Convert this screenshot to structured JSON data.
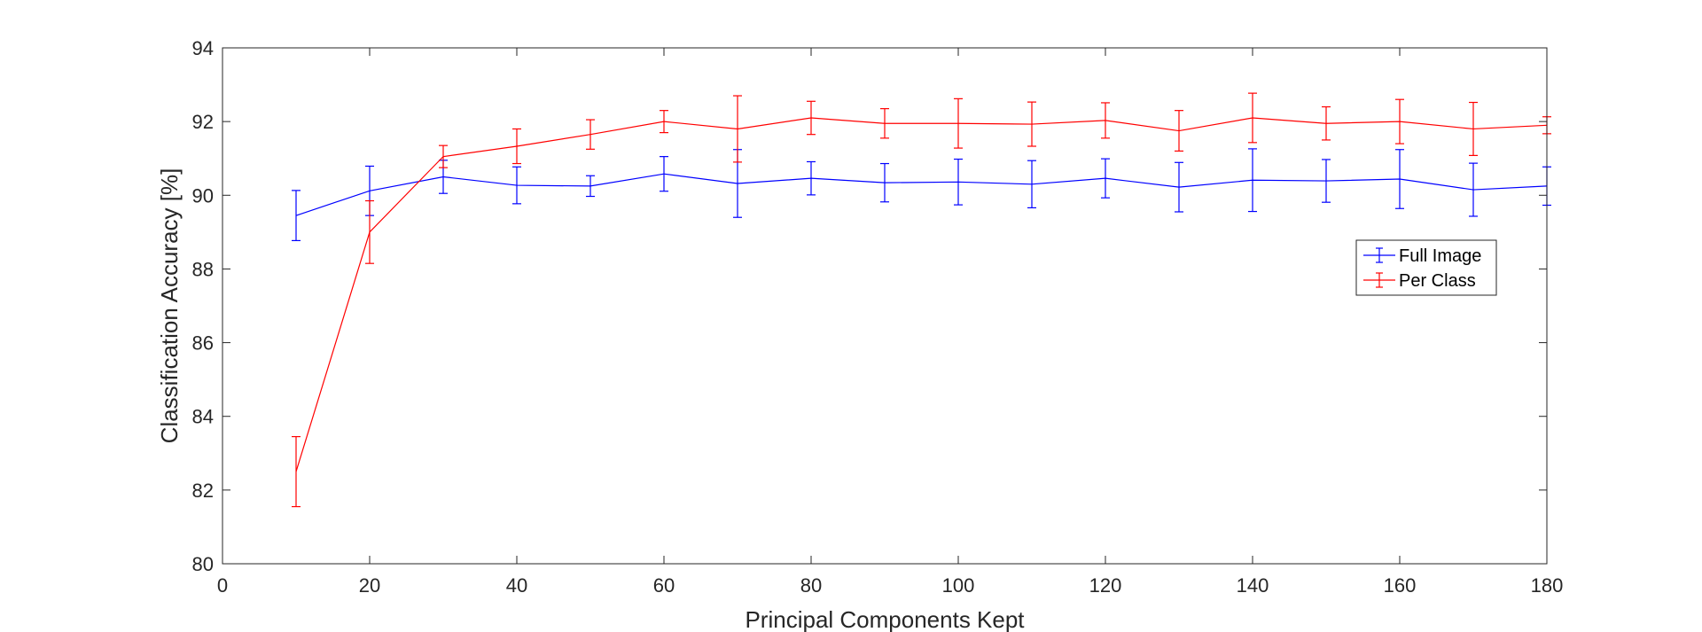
{
  "chart_data": {
    "type": "line",
    "title": "",
    "xlabel": "Principal Components Kept",
    "ylabel": "Classification Accuracy [%]",
    "xlim": [
      0,
      180
    ],
    "ylim": [
      80,
      94
    ],
    "xticks": [
      0,
      20,
      40,
      60,
      80,
      100,
      120,
      140,
      160,
      180
    ],
    "yticks": [
      80,
      82,
      84,
      86,
      88,
      90,
      92,
      94
    ],
    "grid": false,
    "legend_position": "right",
    "x": [
      10,
      20,
      30,
      40,
      50,
      60,
      70,
      80,
      90,
      100,
      110,
      120,
      130,
      140,
      150,
      160,
      170,
      180
    ],
    "series": [
      {
        "name": "Full Image",
        "color": "#0000ff",
        "values": [
          89.45,
          90.12,
          90.5,
          90.27,
          90.25,
          90.58,
          90.32,
          90.46,
          90.34,
          90.36,
          90.3,
          90.46,
          90.22,
          90.41,
          90.39,
          90.44,
          90.15,
          90.25
        ],
        "errors": [
          0.68,
          0.67,
          0.45,
          0.5,
          0.28,
          0.47,
          0.92,
          0.45,
          0.52,
          0.62,
          0.64,
          0.53,
          0.67,
          0.85,
          0.58,
          0.8,
          0.72,
          0.52
        ]
      },
      {
        "name": "Per Class",
        "color": "#ff0000",
        "values": [
          82.5,
          89.0,
          91.05,
          91.33,
          91.65,
          92.0,
          91.8,
          92.1,
          91.95,
          91.95,
          91.93,
          92.03,
          91.75,
          92.1,
          91.95,
          92.0,
          91.8,
          91.9
        ],
        "errors": [
          0.95,
          0.85,
          0.3,
          0.47,
          0.4,
          0.3,
          0.9,
          0.45,
          0.4,
          0.67,
          0.6,
          0.48,
          0.55,
          0.67,
          0.45,
          0.6,
          0.72,
          0.23
        ]
      }
    ]
  }
}
